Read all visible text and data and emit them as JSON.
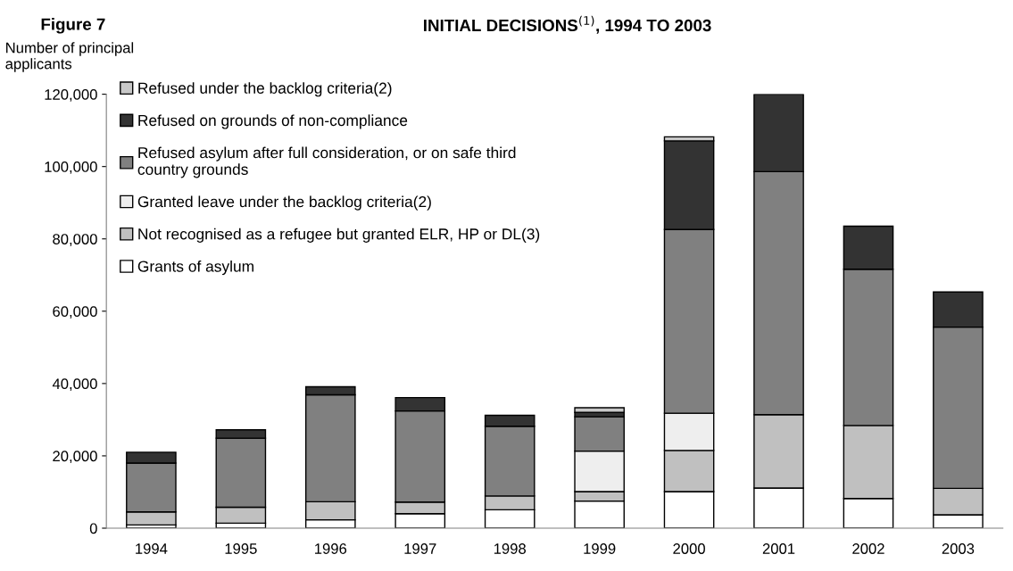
{
  "chart_data": {
    "type": "bar",
    "title": "INITIAL DECISIONS$^{(1)}$, 1994 TO 2003",
    "ylabel": "Number of principal\napplicants",
    "annotations": [
      "Figure 7"
    ],
    "categories": [
      "1994",
      "1995",
      "1996",
      "1997",
      "1998",
      "1999",
      "2000",
      "2001",
      "2002",
      "2003"
    ],
    "stacked": true,
    "legend": "top left",
    "grid": false,
    "ylim": [
      0,
      120000
    ],
    "yticks": [
      0,
      {
        "value": 20000,
        "label": "20,000"
      },
      {
        "value": 40000,
        "label": "40,000"
      },
      {
        "value": 60000,
        "label": "60,000"
      },
      {
        "value": 80000,
        "label": "80,000"
      },
      {
        "value": 100000,
        "label": "100,000"
      },
      {
        "value": 120000,
        "label": "120,000"
      }
    ],
    "series": [
      {
        "name": "Grants of asylum",
        "color": "#ffffff",
        "values": [
          900,
          1400,
          2300,
          4000,
          5100,
          7500,
          10100,
          11100,
          8200,
          3700
        ]
      },
      {
        "name": "Not recognised as a refugee but granted ELR, HP or DL(3)",
        "color": "#c0c0c0",
        "values": [
          3600,
          4400,
          5000,
          3200,
          3800,
          2600,
          11400,
          20300,
          20200,
          7300
        ]
      },
      {
        "name": "Granted leave under the backlog criteria(2)",
        "color": "#eeeeee",
        "values": [
          null,
          null,
          null,
          null,
          null,
          11200,
          10300,
          null,
          null,
          null
        ]
      },
      {
        "name": "Refused asylum after full consideration, or on safe third\ncountry grounds",
        "color": "#808080",
        "values": [
          13500,
          19100,
          29600,
          25200,
          19300,
          9500,
          50800,
          67200,
          43200,
          44600
        ]
      },
      {
        "name": "Refused on grounds of non-compliance",
        "color": "#333333",
        "values": [
          3000,
          2300,
          2200,
          3700,
          3000,
          1200,
          24500,
          21400,
          11900,
          9700
        ]
      },
      {
        "name": "Refused under the backlog criteria(2)",
        "color": "#c8c8c8",
        "values": [
          null,
          null,
          null,
          null,
          null,
          1300,
          1100,
          null,
          null,
          null
        ]
      }
    ]
  }
}
